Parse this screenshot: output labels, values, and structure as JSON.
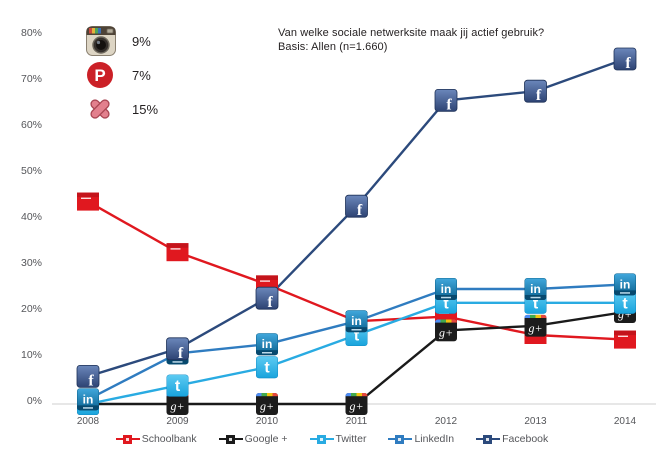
{
  "title": {
    "line1": "Van welke sociale netwerksite maak jij actief gebruik?",
    "line2": "Basis: Allen (n=1.660)"
  },
  "side_stats": [
    {
      "icon": "instagram-icon",
      "value": "9%"
    },
    {
      "icon": "pinterest-icon",
      "value": "7%"
    },
    {
      "icon": "hyves-x-icon",
      "value": "15%"
    }
  ],
  "chart_data": {
    "type": "line",
    "x": [
      "2008",
      "2009",
      "2010",
      "2011",
      "2012",
      "2013",
      "2014"
    ],
    "series": [
      {
        "name": "Schoolbank",
        "color": "#e0181f",
        "marker": "schoolbank",
        "values": [
          44,
          33,
          26,
          18,
          19,
          15,
          14
        ]
      },
      {
        "name": "Google +",
        "color": "#1a1a1a",
        "marker": "googleplus",
        "values": [
          0,
          0,
          0,
          0,
          16,
          17,
          20
        ]
      },
      {
        "name": "Twitter",
        "color": "#29abe2",
        "marker": "twitter",
        "values": [
          0,
          4,
          8,
          15,
          22,
          22,
          22
        ]
      },
      {
        "name": "LinkedIn",
        "color": "#2f7cc0",
        "marker": "linkedin",
        "values": [
          1,
          11,
          13,
          18,
          25,
          25,
          26
        ]
      },
      {
        "name": "Facebook",
        "color": "#2c4a7c",
        "marker": "facebook",
        "values": [
          6,
          12,
          23,
          43,
          66,
          68,
          75
        ]
      }
    ],
    "y_ticks": [
      "0%",
      "10%",
      "20%",
      "30%",
      "40%",
      "50%",
      "60%",
      "70%",
      "80%"
    ],
    "ylim": [
      0,
      80
    ],
    "grid": false,
    "legend_position": "bottom",
    "axis_color": "#cfcfcf",
    "tick_color": "#55565a"
  }
}
